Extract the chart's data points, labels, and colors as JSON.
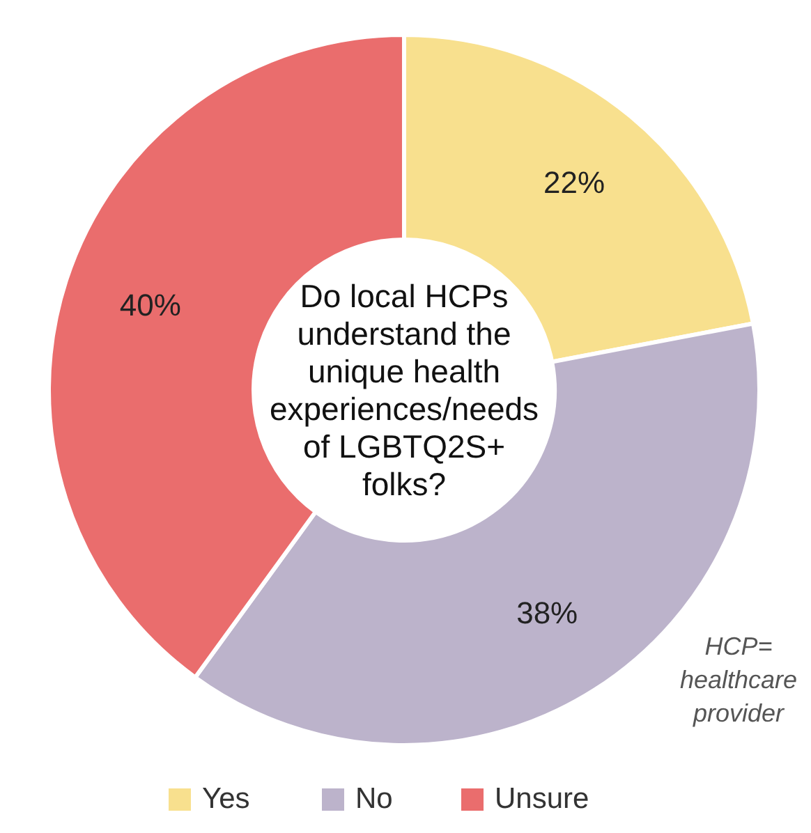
{
  "chart_data": {
    "type": "donut",
    "title": "Do local HCPs understand the unique health experiences/needs of LGBTQ2S+ folks?",
    "categories": [
      "Yes",
      "No",
      "Unsure"
    ],
    "values": [
      22,
      38,
      40
    ],
    "colors": [
      "#f8e08e",
      "#bcb3cb",
      "#ea6d6d"
    ],
    "value_labels": [
      "22%",
      "38%",
      "40%"
    ],
    "annotations": [
      "HCP= healthcare provider"
    ],
    "legend": "bottom"
  }
}
